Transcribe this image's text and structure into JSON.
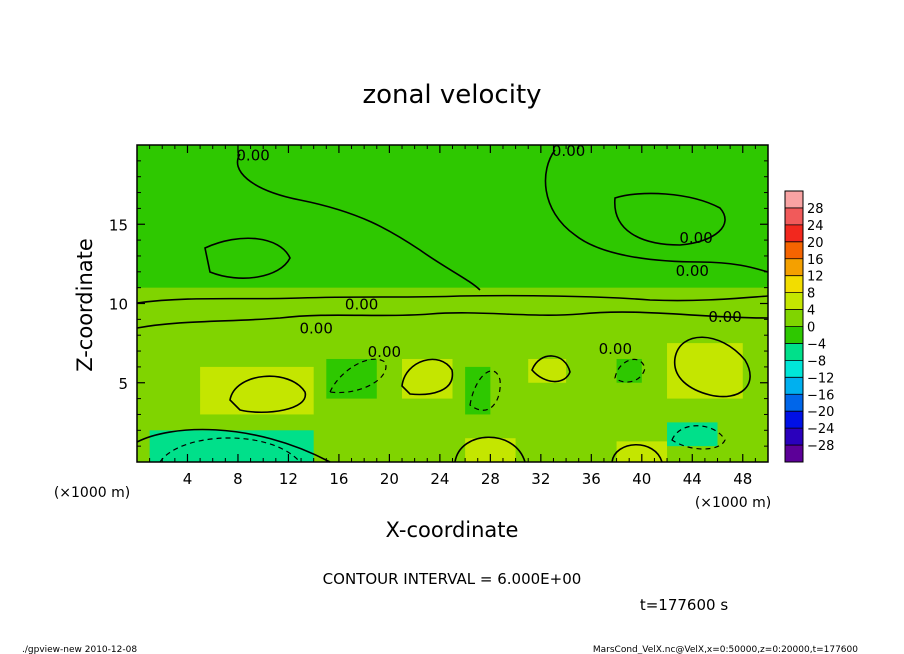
{
  "chart_data": {
    "type": "heatmap",
    "title": "zonal velocity",
    "xlabel": "X-coordinate",
    "ylabel": "Z-coordinate",
    "x_unit_left": "(×1000 m)",
    "x_unit_right": "(×1000 m)",
    "xlim": [
      0,
      50
    ],
    "ylim": [
      0,
      20
    ],
    "x_ticks": [
      4,
      8,
      12,
      16,
      20,
      24,
      28,
      32,
      36,
      40,
      44,
      48
    ],
    "y_ticks": [
      5,
      10,
      15
    ],
    "contour_interval_text": "CONTOUR INTERVAL = 6.000E+00",
    "time_text": "t=177600 s",
    "contour_labels": [
      {
        "text": "0.00",
        "x": 9.2,
        "z": 19.4
      },
      {
        "text": "0.00",
        "x": 34.2,
        "z": 19.7
      },
      {
        "text": "0.00",
        "x": 44.3,
        "z": 14.2
      },
      {
        "text": "0.00",
        "x": 44.0,
        "z": 12.1
      },
      {
        "text": "0.00",
        "x": 17.8,
        "z": 10.0
      },
      {
        "text": "0.00",
        "x": 14.2,
        "z": 8.5
      },
      {
        "text": "0.00",
        "x": 19.6,
        "z": 7.0
      },
      {
        "text": "0.00",
        "x": 37.9,
        "z": 7.2
      },
      {
        "text": "0.00",
        "x": 46.6,
        "z": 9.2
      }
    ],
    "colorbar": {
      "levels": [
        28,
        24,
        20,
        16,
        12,
        8,
        4,
        0,
        -4,
        -8,
        -12,
        -16,
        -20,
        -24,
        -28
      ],
      "colors": [
        "#f9a3a3",
        "#f15a5a",
        "#f2281e",
        "#f56400",
        "#f4a000",
        "#f2dd00",
        "#c4e600",
        "#80d400",
        "#2ec800",
        "#00e08a",
        "#00e6d8",
        "#00b0ef",
        "#0066ea",
        "#0010e6",
        "#2a00bc",
        "#5c0098"
      ]
    },
    "cells": [
      {
        "x0": 0,
        "x1": 50,
        "z0": 0,
        "z1": 20,
        "v": 0
      },
      {
        "x0": 0,
        "x1": 50,
        "z0": 6.5,
        "z1": 9,
        "v": 2
      },
      {
        "x0": 5,
        "x1": 14,
        "z0": 3,
        "z1": 6,
        "v": 5
      },
      {
        "x0": 21,
        "x1": 25,
        "z0": 4,
        "z1": 6.5,
        "v": 5
      },
      {
        "x0": 31,
        "x1": 34,
        "z0": 5,
        "z1": 6.5,
        "v": 5
      },
      {
        "x0": 42,
        "x1": 48,
        "z0": 4,
        "z1": 7.5,
        "v": 5
      },
      {
        "x0": 26,
        "x1": 30,
        "z0": 0,
        "z1": 1.5,
        "v": 5
      },
      {
        "x0": 38,
        "x1": 42,
        "z0": 0,
        "z1": 1.3,
        "v": 4
      },
      {
        "x0": 1,
        "x1": 14,
        "z0": 0,
        "z1": 2,
        "v": -8
      },
      {
        "x0": 15,
        "x1": 19,
        "z0": 4,
        "z1": 6.5,
        "v": -4
      },
      {
        "x0": 26,
        "x1": 28,
        "z0": 3,
        "z1": 6,
        "v": -3
      },
      {
        "x0": 38,
        "x1": 40,
        "z0": 5,
        "z1": 6.5,
        "v": -3
      },
      {
        "x0": 42,
        "x1": 46,
        "z0": 1,
        "z1": 2.5,
        "v": -6
      },
      {
        "x0": 0,
        "x1": 50,
        "z0": 11,
        "z1": 20,
        "v": -1
      },
      {
        "x0": 6,
        "x1": 13,
        "z0": 12,
        "z1": 14,
        "v": -2
      },
      {
        "x0": 38,
        "x1": 45,
        "z0": 12,
        "z1": 17,
        "v": -2
      }
    ]
  },
  "footer": {
    "left": "./gpview-new  2010-12-08",
    "right": "MarsCond_VelX.nc@VelX,x=0:50000,z=0:20000,t=177600"
  }
}
